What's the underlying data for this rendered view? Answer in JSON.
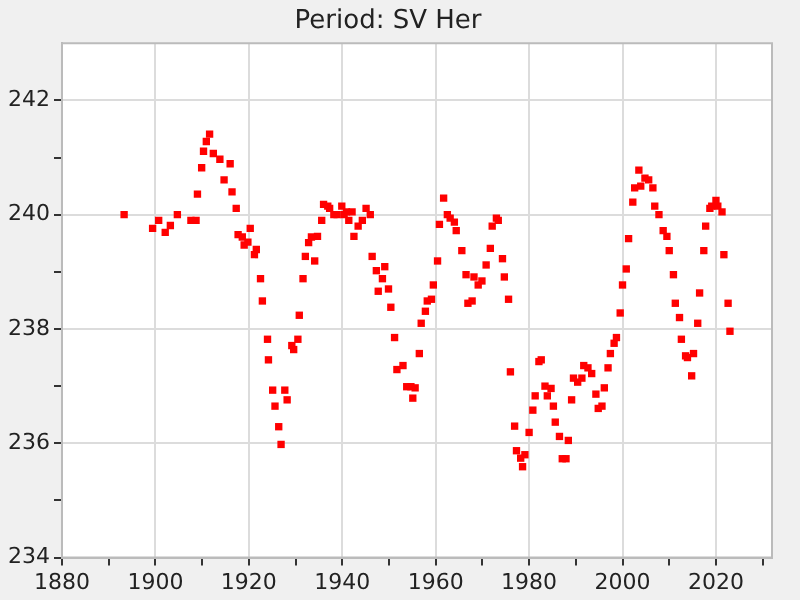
{
  "chart_data": {
    "type": "scatter",
    "title": "Period: SV Her",
    "marker": "square",
    "color": "#ff0000",
    "grid": true,
    "xlim": [
      1880,
      2032
    ],
    "ylim": [
      234,
      243
    ],
    "xticks": [
      1880,
      {
        "value": 1890,
        "label": null
      },
      1900,
      {
        "value": 1910,
        "label": null
      },
      1920,
      {
        "value": 1930,
        "label": null
      },
      1940,
      {
        "value": 1950,
        "label": null
      },
      1960,
      {
        "value": 1970,
        "label": null
      },
      1980,
      {
        "value": 1990,
        "label": null
      },
      2000,
      {
        "value": 2010,
        "label": null
      },
      2020,
      {
        "value": 2030,
        "label": null
      }
    ],
    "yticks": [
      234,
      {
        "value": 235,
        "label": null
      },
      236,
      {
        "value": 237,
        "label": null
      },
      238,
      {
        "value": 239,
        "label": null
      },
      240,
      {
        "value": 241,
        "label": null
      },
      242
    ],
    "x": [
      1893.3,
      1899.4,
      1900.7,
      1902.1,
      1903.2,
      1904.7,
      1907.6,
      1908.7,
      1909.0,
      1909.9,
      1910.3,
      1910.9,
      1911.6,
      1912.4,
      1913.8,
      1914.7,
      1916.0,
      1916.4,
      1917.3,
      1917.7,
      1918.6,
      1919.0,
      1919.8,
      1920.3,
      1921.2,
      1921.6,
      1922.5,
      1922.9,
      1924.0,
      1924.2,
      1925.1,
      1925.6,
      1926.4,
      1926.9,
      1927.7,
      1928.2,
      1929.2,
      1929.6,
      1930.5,
      1930.8,
      1931.6,
      1932.1,
      1932.8,
      1933.4,
      1934.1,
      1934.7,
      1935.6,
      1936.0,
      1936.9,
      1937.3,
      1938.2,
      1938.9,
      1939.9,
      1940.4,
      1940.9,
      1941.4,
      1942.1,
      1942.5,
      1943.4,
      1944.3,
      1945.1,
      1946.0,
      1946.4,
      1947.3,
      1947.7,
      1948.6,
      1949.1,
      1949.9,
      1950.4,
      1951.2,
      1951.7,
      1953.0,
      1953.8,
      1954.7,
      1955.1,
      1955.6,
      1956.5,
      1956.9,
      1957.8,
      1958.2,
      1959.1,
      1959.5,
      1960.4,
      1960.8,
      1961.7,
      1962.5,
      1963.1,
      1964.0,
      1964.4,
      1965.6,
      1966.5,
      1966.9,
      1967.8,
      1968.2,
      1969.1,
      1969.9,
      1970.8,
      1971.7,
      1972.1,
      1973.0,
      1973.4,
      1974.3,
      1974.7,
      1975.6,
      1976.0,
      1976.9,
      1977.3,
      1978.2,
      1978.6,
      1979.1,
      1980.0,
      1980.8,
      1981.3,
      1982.1,
      1982.6,
      1983.4,
      1983.9,
      1984.7,
      1985.2,
      1985.6,
      1986.5,
      1987.1,
      1987.9,
      1988.4,
      1989.1,
      1989.5,
      1990.4,
      1991.3,
      1991.7,
      1992.6,
      1993.4,
      1994.3,
      1994.8,
      1995.6,
      1996.1,
      1996.9,
      1997.4,
      1998.2,
      1998.7,
      1999.5,
      2000.0,
      2000.8,
      2001.3,
      2002.2,
      2002.6,
      2003.5,
      2003.9,
      2004.8,
      2005.6,
      2006.5,
      2006.9,
      2007.8,
      2008.7,
      2009.5,
      2010.0,
      2010.9,
      2011.3,
      2012.2,
      2012.6,
      2013.5,
      2013.9,
      2014.8,
      2015.2,
      2016.1,
      2016.5,
      2017.4,
      2017.8,
      2018.7,
      2019.1,
      2020.0,
      2020.4,
      2021.3,
      2021.7,
      2022.6,
      2023.0
    ],
    "values": [
      240.0,
      239.76,
      239.9,
      239.69,
      239.81,
      240.0,
      239.9,
      239.9,
      240.36,
      240.82,
      241.11,
      241.28,
      241.41,
      241.07,
      240.97,
      240.61,
      240.89,
      240.4,
      240.11,
      239.65,
      239.61,
      239.47,
      239.52,
      239.76,
      239.3,
      239.39,
      238.88,
      238.49,
      237.82,
      237.46,
      236.93,
      236.65,
      236.29,
      235.98,
      236.93,
      236.76,
      237.71,
      237.64,
      237.82,
      238.24,
      238.88,
      239.27,
      239.51,
      239.61,
      239.19,
      239.62,
      239.9,
      240.18,
      240.15,
      240.11,
      240.0,
      240.0,
      240.15,
      240.0,
      240.05,
      239.9,
      240.05,
      239.62,
      239.8,
      239.9,
      240.11,
      240.0,
      239.27,
      239.02,
      238.66,
      238.88,
      239.09,
      238.7,
      238.38,
      237.85,
      237.29,
      237.36,
      236.99,
      236.99,
      236.79,
      236.97,
      237.57,
      238.1,
      238.31,
      238.49,
      238.52,
      238.77,
      239.19,
      239.83,
      240.29,
      240.0,
      239.94,
      239.87,
      239.72,
      239.37,
      238.95,
      238.45,
      238.49,
      238.91,
      238.77,
      238.84,
      239.12,
      239.41,
      239.8,
      239.94,
      239.9,
      239.23,
      238.91,
      238.52,
      237.25,
      236.3,
      235.87,
      235.74,
      235.59,
      235.8,
      236.19,
      236.58,
      236.83,
      237.43,
      237.46,
      237.0,
      236.83,
      236.96,
      236.65,
      236.37,
      236.12,
      235.73,
      235.73,
      236.05,
      236.76,
      237.14,
      237.07,
      237.14,
      237.36,
      237.32,
      237.22,
      236.86,
      236.61,
      236.65,
      236.97,
      237.32,
      237.57,
      237.75,
      237.85,
      238.28,
      238.77,
      239.05,
      239.58,
      240.22,
      240.47,
      240.78,
      240.5,
      240.64,
      240.61,
      240.47,
      240.15,
      240.0,
      239.72,
      239.62,
      239.37,
      238.95,
      238.45,
      238.2,
      237.82,
      237.53,
      237.5,
      237.18,
      237.57,
      238.1,
      238.63,
      239.37,
      239.8,
      240.11,
      240.15,
      240.25,
      240.15,
      240.05,
      239.3,
      238.45,
      237.96
    ]
  }
}
